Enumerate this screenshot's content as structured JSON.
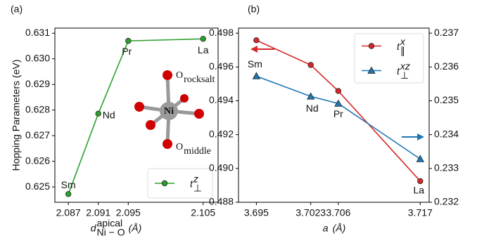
{
  "chart_data": [
    {
      "type": "line",
      "panel_label": "(a)",
      "ylabel": "Hopping Parameters (eV)",
      "xlabel": {
        "main": "d",
        "superscript": "apical",
        "subscript": "Ni − O",
        "unit": "(Å)"
      },
      "x": [
        2.087,
        2.091,
        2.095,
        2.105
      ],
      "labels": [
        "Sm",
        "Nd",
        "Pr",
        "La"
      ],
      "series": [
        {
          "name": "t",
          "name_superscript": "z",
          "name_subscript": "⊥",
          "color": "#2ca02c",
          "marker": "circle",
          "values": [
            0.62472,
            0.62786,
            0.6307,
            0.63078
          ]
        }
      ],
      "xlim": [
        2.0852,
        2.107
      ],
      "xticks": [
        2.087,
        2.091,
        2.095,
        2.105
      ],
      "ylim": [
        0.6244,
        0.6312
      ],
      "yticks": [
        0.625,
        0.626,
        0.627,
        0.628,
        0.629,
        {
          "value": 0.63,
          "label": "0.630"
        },
        0.631
      ],
      "legend_loc": "lower right",
      "inset": {
        "top_label": {
          "main": "O",
          "subscript": "rocksalt"
        },
        "center_label": "Ni",
        "bottom_label": {
          "main": "O",
          "subscript": "middle"
        }
      }
    },
    {
      "type": "line",
      "panel_label": "(b)",
      "xlabel": {
        "main": "a",
        "unit": "(Å)"
      },
      "x": [
        3.695,
        3.7023,
        3.706,
        3.717
      ],
      "labels": [
        "Sm",
        "Nd",
        "Pr",
        "La"
      ],
      "series": [
        {
          "name": "t",
          "name_superscript": "x",
          "name_subscript": "∥",
          "color": "#d62728",
          "marker": "circle",
          "values": [
            0.49758,
            0.49612,
            0.49458,
            0.48925
          ]
        },
        {
          "name": "t",
          "name_superscript": "xz",
          "name_subscript": "⊥",
          "color": "#1f77b4",
          "marker": "triangle",
          "axis": "y2",
          "values": [
            0.23573,
            0.23513,
            0.23492,
            0.23328
          ]
        }
      ],
      "xlim": [
        3.6926,
        3.7182
      ],
      "xticks": [
        3.695,
        3.7023,
        3.706,
        3.717
      ],
      "ylim": [
        0.488,
        0.4983
      ],
      "yticks": [
        0.498,
        0.496,
        0.494,
        0.492,
        {
          "value": 0.49,
          "label": "0.490"
        },
        0.488
      ],
      "y2lim": [
        0.232,
        0.23715
      ],
      "y2ticks": [
        0.237,
        0.236,
        0.235,
        0.234,
        0.233,
        0.232
      ],
      "legend_loc": "upper right"
    }
  ]
}
